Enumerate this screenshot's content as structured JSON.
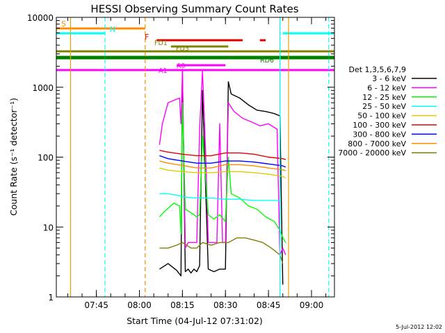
{
  "chart_data": {
    "type": "line",
    "title": "HESSI Observing Summary Count Rates",
    "xlabel": "Start Time (04-Jul-12 07:31:02)",
    "ylabel": "Count Rate (s⁻¹ detector⁻¹)",
    "footer": "5-Jul-2012 12:02",
    "xlim": [
      "07:31:02",
      "09:08:00"
    ],
    "ylim": [
      1,
      10000
    ],
    "y_scale": "log",
    "x_ticks": [
      "07:45",
      "08:00",
      "08:15",
      "08:30",
      "08:45",
      "09:00"
    ],
    "y_ticks": [
      "1",
      "10",
      "100",
      "1000",
      "10000"
    ],
    "legend": {
      "title": "Det 1,3,5,6,7,9",
      "placement": "right",
      "entries": [
        {
          "label": "3 - 6 keV",
          "color": "#000000"
        },
        {
          "label": "6 - 12 keV",
          "color": "#ff00ff"
        },
        {
          "label": "12 - 25 keV",
          "color": "#00ff00"
        },
        {
          "label": "25 - 50 keV",
          "color": "#00ffff"
        },
        {
          "label": "50 - 100 keV",
          "color": "#e6c800"
        },
        {
          "label": "100 - 300 keV",
          "color": "#e00000"
        },
        {
          "label": "300 - 800 keV",
          "color": "#0000ff"
        },
        {
          "label": "800 - 7000 keV",
          "color": "#ff8c00"
        },
        {
          "label": "7000 - 20000 keV",
          "color": "#808000"
        }
      ]
    },
    "flags": [
      {
        "label": "S",
        "color": "#ff8c00",
        "segments": [
          [
            "07:31",
            "08:02"
          ]
        ]
      },
      {
        "label": "N",
        "color": "#00ffff",
        "segments": [
          [
            "07:31",
            "07:48"
          ],
          [
            "08:50",
            "09:08"
          ]
        ]
      },
      {
        "label": "F",
        "color": "#e00000",
        "segments": [
          [
            "08:06",
            "08:36"
          ],
          [
            "08:42",
            "08:44"
          ]
        ]
      },
      {
        "label": "FD1",
        "color": "#808000",
        "segments": [
          [
            "08:11",
            "08:31"
          ]
        ]
      },
      {
        "label": "FD3",
        "color": "#808000",
        "segments": [
          [
            "07:31",
            "09:08"
          ]
        ]
      },
      {
        "label": "RD6",
        "color": "#008000",
        "segments": [
          [
            "07:31",
            "09:08"
          ]
        ]
      },
      {
        "label": "A0",
        "color": "#ff00ff",
        "segments": [
          [
            "08:13",
            "08:30"
          ]
        ]
      },
      {
        "label": "A1",
        "color": "#ff00ff",
        "segments": [
          [
            "07:31",
            "09:08"
          ]
        ]
      }
    ],
    "markers": [
      {
        "time": "07:36",
        "color": "#e6a000",
        "style": "solid"
      },
      {
        "time": "07:48",
        "color": "#00ffff",
        "style": "dashed"
      },
      {
        "time": "08:02",
        "color": "#ff8c00",
        "style": "dashed"
      },
      {
        "time": "08:49",
        "color": "#00ffff",
        "style": "solid"
      },
      {
        "time": "08:52",
        "color": "#e6a000",
        "style": "solid"
      },
      {
        "time": "09:06",
        "color": "#00ffff",
        "style": "dashed"
      }
    ],
    "series": [
      {
        "name": "3 - 6 keV",
        "color": "#000000",
        "x": [
          "08:07",
          "08:10",
          "08:13",
          "08:14:30",
          "08:15",
          "08:16",
          "08:17",
          "08:18",
          "08:19",
          "08:20",
          "08:21",
          "08:22",
          "08:24",
          "08:26",
          "08:28",
          "08:29:30",
          "08:30",
          "08:31",
          "08:32",
          "08:35",
          "08:38",
          "08:41",
          "08:44",
          "08:47",
          "08:49",
          "08:50"
        ],
        "y": [
          2.5,
          3,
          2.4,
          2,
          1800,
          2.3,
          2.5,
          2.2,
          2.5,
          2.3,
          2.8,
          900,
          2.5,
          2.3,
          2.5,
          2.5,
          2.5,
          1200,
          800,
          700,
          560,
          470,
          450,
          420,
          390,
          1.5
        ]
      },
      {
        "name": "6 - 12 keV",
        "color": "#ff00ff",
        "x": [
          "08:07",
          "08:08",
          "08:10",
          "08:12",
          "08:14",
          "08:14:30",
          "08:15",
          "08:16",
          "08:17",
          "08:19",
          "08:20",
          "08:21",
          "08:22",
          "08:23",
          "08:24",
          "08:25",
          "08:26",
          "08:27",
          "08:28",
          "08:29",
          "08:30",
          "08:31",
          "08:33",
          "08:36",
          "08:39",
          "08:42",
          "08:45",
          "08:48",
          "08:49",
          "08:50",
          "08:51"
        ],
        "y": [
          150,
          300,
          600,
          650,
          700,
          300,
          1700,
          5,
          6,
          6,
          6,
          250,
          1700,
          150,
          6,
          6,
          6,
          6,
          300,
          6,
          6,
          600,
          450,
          360,
          320,
          280,
          300,
          250,
          4,
          5,
          4
        ]
      },
      {
        "name": "12 - 25 keV",
        "color": "#00ff00",
        "x": [
          "08:07",
          "08:09",
          "08:12",
          "08:14",
          "08:14:30",
          "08:15",
          "08:16",
          "08:18",
          "08:20",
          "08:21",
          "08:22",
          "08:24",
          "08:26",
          "08:28",
          "08:30",
          "08:31",
          "08:32",
          "08:35",
          "08:38",
          "08:41",
          "08:44",
          "08:47",
          "08:49",
          "08:50",
          "08:51"
        ],
        "y": [
          14,
          17,
          22,
          20,
          8,
          600,
          18,
          16,
          14,
          15,
          200,
          15,
          13,
          15,
          12,
          100,
          30,
          26,
          20,
          18,
          14,
          12,
          9,
          7,
          6
        ]
      },
      {
        "name": "25 - 50 keV",
        "color": "#00ffff",
        "x": [
          "08:07",
          "08:10",
          "08:14",
          "08:15",
          "08:20",
          "08:25",
          "08:30",
          "08:35",
          "08:40",
          "08:45",
          "08:49"
        ],
        "y": [
          30,
          30,
          28,
          27,
          26,
          26,
          25,
          25,
          24,
          24,
          24
        ]
      },
      {
        "name": "50 - 100 keV",
        "color": "#e6c800",
        "x": [
          "08:07",
          "08:10",
          "08:15",
          "08:20",
          "08:25",
          "08:30",
          "08:35",
          "08:40",
          "08:45",
          "08:50",
          "08:51"
        ],
        "y": [
          70,
          65,
          62,
          60,
          60,
          62,
          62,
          60,
          57,
          53,
          50
        ]
      },
      {
        "name": "100 - 300 keV",
        "color": "#e00000",
        "x": [
          "08:07",
          "08:10",
          "08:15",
          "08:20",
          "08:25",
          "08:30",
          "08:35",
          "08:40",
          "08:45",
          "08:50",
          "08:51"
        ],
        "y": [
          125,
          118,
          110,
          105,
          105,
          115,
          115,
          110,
          100,
          95,
          92
        ]
      },
      {
        "name": "300 - 800 keV",
        "color": "#0000ff",
        "x": [
          "08:07",
          "08:10",
          "08:15",
          "08:20",
          "08:25",
          "08:30",
          "08:35",
          "08:40",
          "08:45",
          "08:50",
          "08:51"
        ],
        "y": [
          105,
          95,
          88,
          82,
          82,
          88,
          88,
          85,
          80,
          75,
          72
        ]
      },
      {
        "name": "800 - 7000 keV",
        "color": "#ff8c00",
        "x": [
          "08:07",
          "08:10",
          "08:15",
          "08:20",
          "08:25",
          "08:30",
          "08:35",
          "08:40",
          "08:45",
          "08:50",
          "08:51"
        ],
        "y": [
          88,
          82,
          76,
          70,
          70,
          78,
          78,
          75,
          70,
          66,
          64
        ]
      },
      {
        "name": "7000 - 20000 keV",
        "color": "#808000",
        "x": [
          "08:07",
          "08:10",
          "08:13",
          "08:15",
          "08:18",
          "08:20",
          "08:22",
          "08:25",
          "08:28",
          "08:31",
          "08:34",
          "08:37",
          "08:40",
          "08:43",
          "08:46",
          "08:49",
          "08:50"
        ],
        "y": [
          5,
          5,
          5.5,
          6,
          5,
          5,
          6,
          5.5,
          6,
          6,
          7,
          7,
          6.5,
          6,
          5,
          4,
          3
        ]
      }
    ]
  }
}
